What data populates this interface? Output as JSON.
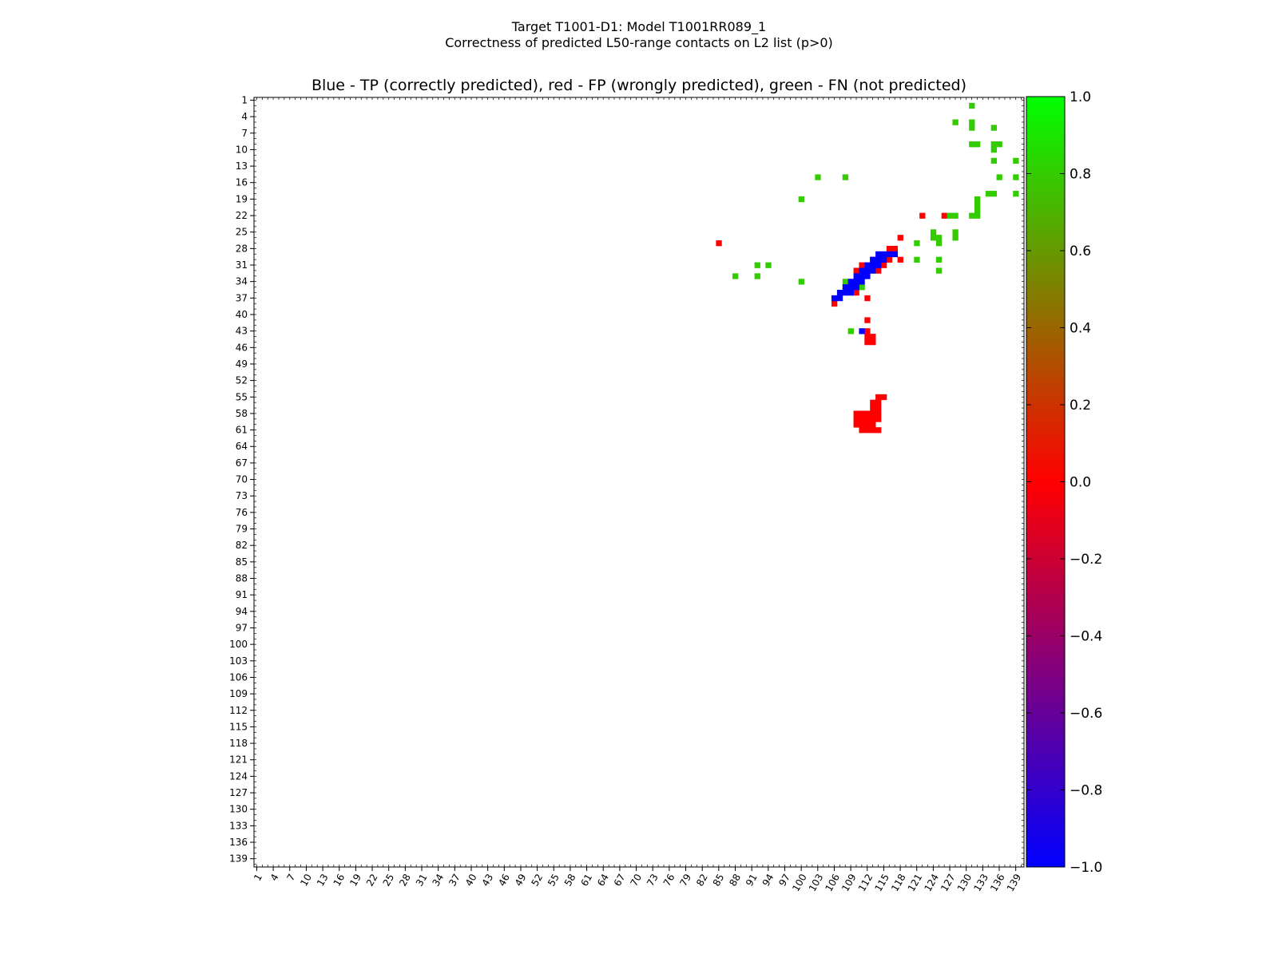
{
  "chart_data": {
    "type": "heatmap",
    "title": "Target T1001-D1: Model T1001RR089_1",
    "subtitle": "Correctness of predicted L50-range contacts on L2 list (p>0)",
    "plot_title": "Blue - TP (correctly predicted), red - FP (wrongly predicted), green - FN (not predicted)",
    "x_range": [
      1,
      140
    ],
    "y_range": [
      1,
      140
    ],
    "tick_labels": [
      "1",
      "4",
      "7",
      "10",
      "13",
      "16",
      "19",
      "22",
      "25",
      "28",
      "31",
      "34",
      "37",
      "40",
      "43",
      "46",
      "49",
      "52",
      "55",
      "58",
      "61",
      "64",
      "67",
      "70",
      "73",
      "76",
      "79",
      "82",
      "85",
      "88",
      "91",
      "94",
      "97",
      "100",
      "103",
      "106",
      "109",
      "112",
      "115",
      "118",
      "121",
      "124",
      "127",
      "130",
      "133",
      "136",
      "139"
    ],
    "colorbar": {
      "min": -1.0,
      "max": 1.0,
      "ticks": [
        "1.0",
        "0.8",
        "0.6",
        "0.4",
        "0.2",
        "0.0",
        "−0.2",
        "−0.4",
        "−0.6",
        "−0.8",
        "−1.0"
      ],
      "stops": [
        "#0000ff",
        "#ff0000",
        "#00ff00"
      ]
    },
    "colors": {
      "TP": "#0000ff",
      "FP": "#ff0000",
      "FN": "#33cc00"
    },
    "legend": {
      "TP": "correctly predicted",
      "FP": "wrongly predicted",
      "FN": "not predicted"
    },
    "cells": {
      "TP": [
        [
          106,
          37
        ],
        [
          107,
          36
        ],
        [
          107,
          37
        ],
        [
          108,
          36
        ],
        [
          108,
          35
        ],
        [
          109,
          36
        ],
        [
          109,
          35
        ],
        [
          109,
          34
        ],
        [
          110,
          35
        ],
        [
          110,
          34
        ],
        [
          110,
          33
        ],
        [
          111,
          34
        ],
        [
          111,
          33
        ],
        [
          111,
          32
        ],
        [
          112,
          33
        ],
        [
          112,
          32
        ],
        [
          112,
          31
        ],
        [
          113,
          32
        ],
        [
          113,
          31
        ],
        [
          113,
          30
        ],
        [
          114,
          31
        ],
        [
          114,
          30
        ],
        [
          114,
          29
        ],
        [
          115,
          30
        ],
        [
          115,
          29
        ],
        [
          116,
          29
        ],
        [
          117,
          29
        ],
        [
          111,
          43
        ]
      ],
      "FP": [
        [
          106,
          38
        ],
        [
          110,
          36
        ],
        [
          112,
          37
        ],
        [
          112,
          41
        ],
        [
          112,
          43
        ],
        [
          112,
          44
        ],
        [
          113,
          44
        ],
        [
          112,
          45
        ],
        [
          113,
          45
        ],
        [
          110,
          32
        ],
        [
          111,
          31
        ],
        [
          113,
          30
        ],
        [
          114,
          32
        ],
        [
          115,
          31
        ],
        [
          116,
          30
        ],
        [
          116,
          28
        ],
        [
          117,
          28
        ],
        [
          117,
          29
        ],
        [
          118,
          30
        ],
        [
          118,
          26
        ],
        [
          122,
          22
        ],
        [
          126,
          22
        ],
        [
          85,
          27
        ],
        [
          114,
          55
        ],
        [
          115,
          55
        ],
        [
          113,
          56
        ],
        [
          114,
          56
        ],
        [
          113,
          57
        ],
        [
          114,
          57
        ],
        [
          110,
          58
        ],
        [
          111,
          58
        ],
        [
          112,
          58
        ],
        [
          113,
          58
        ],
        [
          114,
          58
        ],
        [
          110,
          59
        ],
        [
          111,
          59
        ],
        [
          112,
          59
        ],
        [
          113,
          59
        ],
        [
          114,
          59
        ],
        [
          110,
          60
        ],
        [
          111,
          60
        ],
        [
          112,
          60
        ],
        [
          113,
          60
        ],
        [
          111,
          61
        ],
        [
          112,
          61
        ],
        [
          114,
          61
        ],
        [
          113,
          61
        ]
      ],
      "FN": [
        [
          131,
          2
        ],
        [
          128,
          5
        ],
        [
          131,
          5
        ],
        [
          131,
          6
        ],
        [
          135,
          6
        ],
        [
          131,
          9
        ],
        [
          132,
          9
        ],
        [
          135,
          9
        ],
        [
          136,
          9
        ],
        [
          135,
          10
        ],
        [
          135,
          12
        ],
        [
          139,
          12
        ],
        [
          103,
          15
        ],
        [
          108,
          15
        ],
        [
          136,
          15
        ],
        [
          139,
          15
        ],
        [
          100,
          19
        ],
        [
          134,
          18
        ],
        [
          135,
          18
        ],
        [
          139,
          18
        ],
        [
          132,
          19
        ],
        [
          132,
          20
        ],
        [
          127,
          22
        ],
        [
          128,
          22
        ],
        [
          131,
          22
        ],
        [
          132,
          22
        ],
        [
          132,
          21
        ],
        [
          124,
          25
        ],
        [
          124,
          26
        ],
        [
          125,
          26
        ],
        [
          125,
          27
        ],
        [
          128,
          25
        ],
        [
          128,
          26
        ],
        [
          121,
          27
        ],
        [
          121,
          30
        ],
        [
          125,
          30
        ],
        [
          125,
          32
        ],
        [
          88,
          33
        ],
        [
          92,
          31
        ],
        [
          92,
          33
        ],
        [
          94,
          31
        ],
        [
          100,
          34
        ],
        [
          108,
          34
        ],
        [
          111,
          35
        ],
        [
          109,
          43
        ]
      ]
    }
  }
}
